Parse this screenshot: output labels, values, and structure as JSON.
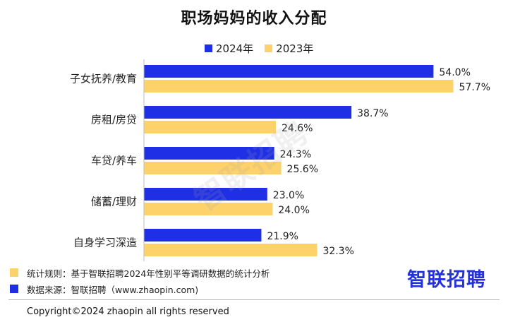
{
  "chart_data": {
    "type": "bar",
    "orientation": "horizontal",
    "title": "职场妈妈的收入分配",
    "categories": [
      "子女抚养/教育",
      "房租/房贷",
      "车贷/养车",
      "储蓄/理财",
      "自身学习深造"
    ],
    "series": [
      {
        "name": "2024年",
        "values": [
          54.0,
          38.7,
          24.3,
          23.0,
          21.9
        ],
        "labels": [
          "54.0%",
          "38.7%",
          "24.3%",
          "23.0%",
          "21.9%"
        ],
        "color": "#1f2fe6"
      },
      {
        "name": "2023年",
        "values": [
          57.7,
          24.6,
          25.6,
          24.0,
          32.3
        ],
        "labels": [
          "57.7%",
          "24.6%",
          "25.6%",
          "24.0%",
          "32.3%"
        ],
        "color": "#fdd26b"
      }
    ],
    "xlim": [
      0,
      60
    ],
    "legend_position": "top",
    "grid": false
  },
  "watermark": "智联招聘",
  "notes": {
    "rule": "统计规则：基于智联招聘2024年性别平等调研数据的统计分析",
    "source": "数据来源：智联招聘（www.zhaopin.com)"
  },
  "brand": "智联招聘",
  "copyright": "Copyright©2024 zhaopin all rights reserved"
}
